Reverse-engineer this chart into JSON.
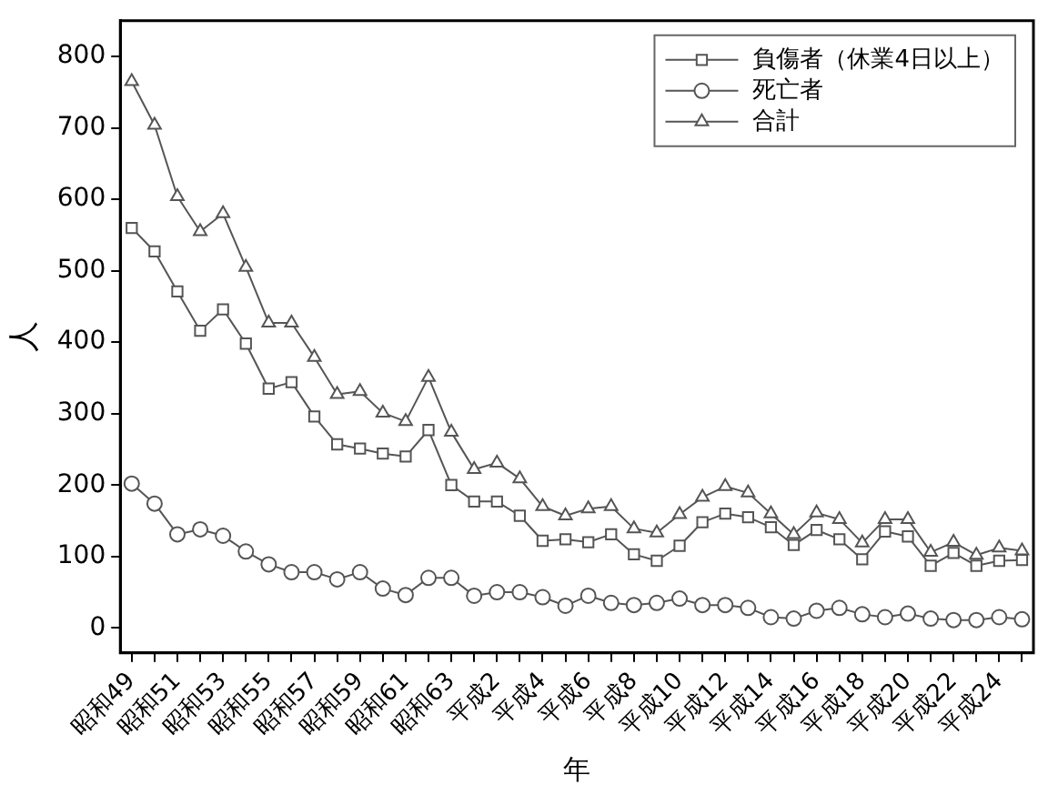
{
  "chart_data": {
    "type": "line",
    "xlabel": "年",
    "ylabel": "人",
    "categories": [
      "昭和49",
      null,
      "昭和51",
      null,
      "昭和53",
      null,
      "昭和55",
      null,
      "昭和57",
      null,
      "昭和59",
      null,
      "昭和61",
      null,
      "昭和63",
      null,
      "平成2",
      null,
      "平成4",
      null,
      "平成6",
      null,
      "平成8",
      null,
      "平成10",
      null,
      "平成12",
      null,
      "平成14",
      null,
      "平成16",
      null,
      "平成18",
      null,
      "平成20",
      null,
      "平成22",
      null,
      "平成24",
      null
    ],
    "series": [
      {
        "name": "負傷者（休業4日以上）",
        "color": "#555555",
        "marker": "square",
        "values": [
          560,
          527,
          471,
          416,
          446,
          398,
          335,
          344,
          296,
          257,
          251,
          244,
          240,
          277,
          200,
          177,
          177,
          157,
          122,
          124,
          120,
          131,
          103,
          94,
          115,
          148,
          160,
          155,
          141,
          116,
          137,
          124,
          96,
          135,
          128,
          87,
          105,
          87,
          94,
          95
        ]
      },
      {
        "name": "死亡者",
        "color": "#555555",
        "marker": "circle",
        "values": [
          202,
          174,
          131,
          138,
          129,
          107,
          89,
          78,
          78,
          68,
          78,
          55,
          46,
          70,
          70,
          45,
          50,
          50,
          43,
          31,
          45,
          35,
          32,
          35,
          41,
          32,
          32,
          28,
          15,
          13,
          24,
          28,
          19,
          15,
          20,
          13,
          11,
          11,
          15,
          12
        ]
      },
      {
        "name": "合計",
        "color": "#555555",
        "marker": "triangle",
        "values": [
          765,
          704,
          604,
          555,
          580,
          505,
          427,
          427,
          379,
          327,
          331,
          301,
          289,
          351,
          274,
          222,
          231,
          209,
          170,
          157,
          167,
          170,
          139,
          133,
          159,
          183,
          198,
          189,
          160,
          131,
          161,
          152,
          119,
          152,
          152,
          106,
          120,
          102,
          112,
          108
        ]
      }
    ],
    "ylim": [
      -35,
      850
    ],
    "yticks": [
      0,
      100,
      200,
      300,
      400,
      500,
      600,
      700,
      800
    ],
    "grid": false,
    "legend": "top right",
    "line_style": "solid"
  }
}
